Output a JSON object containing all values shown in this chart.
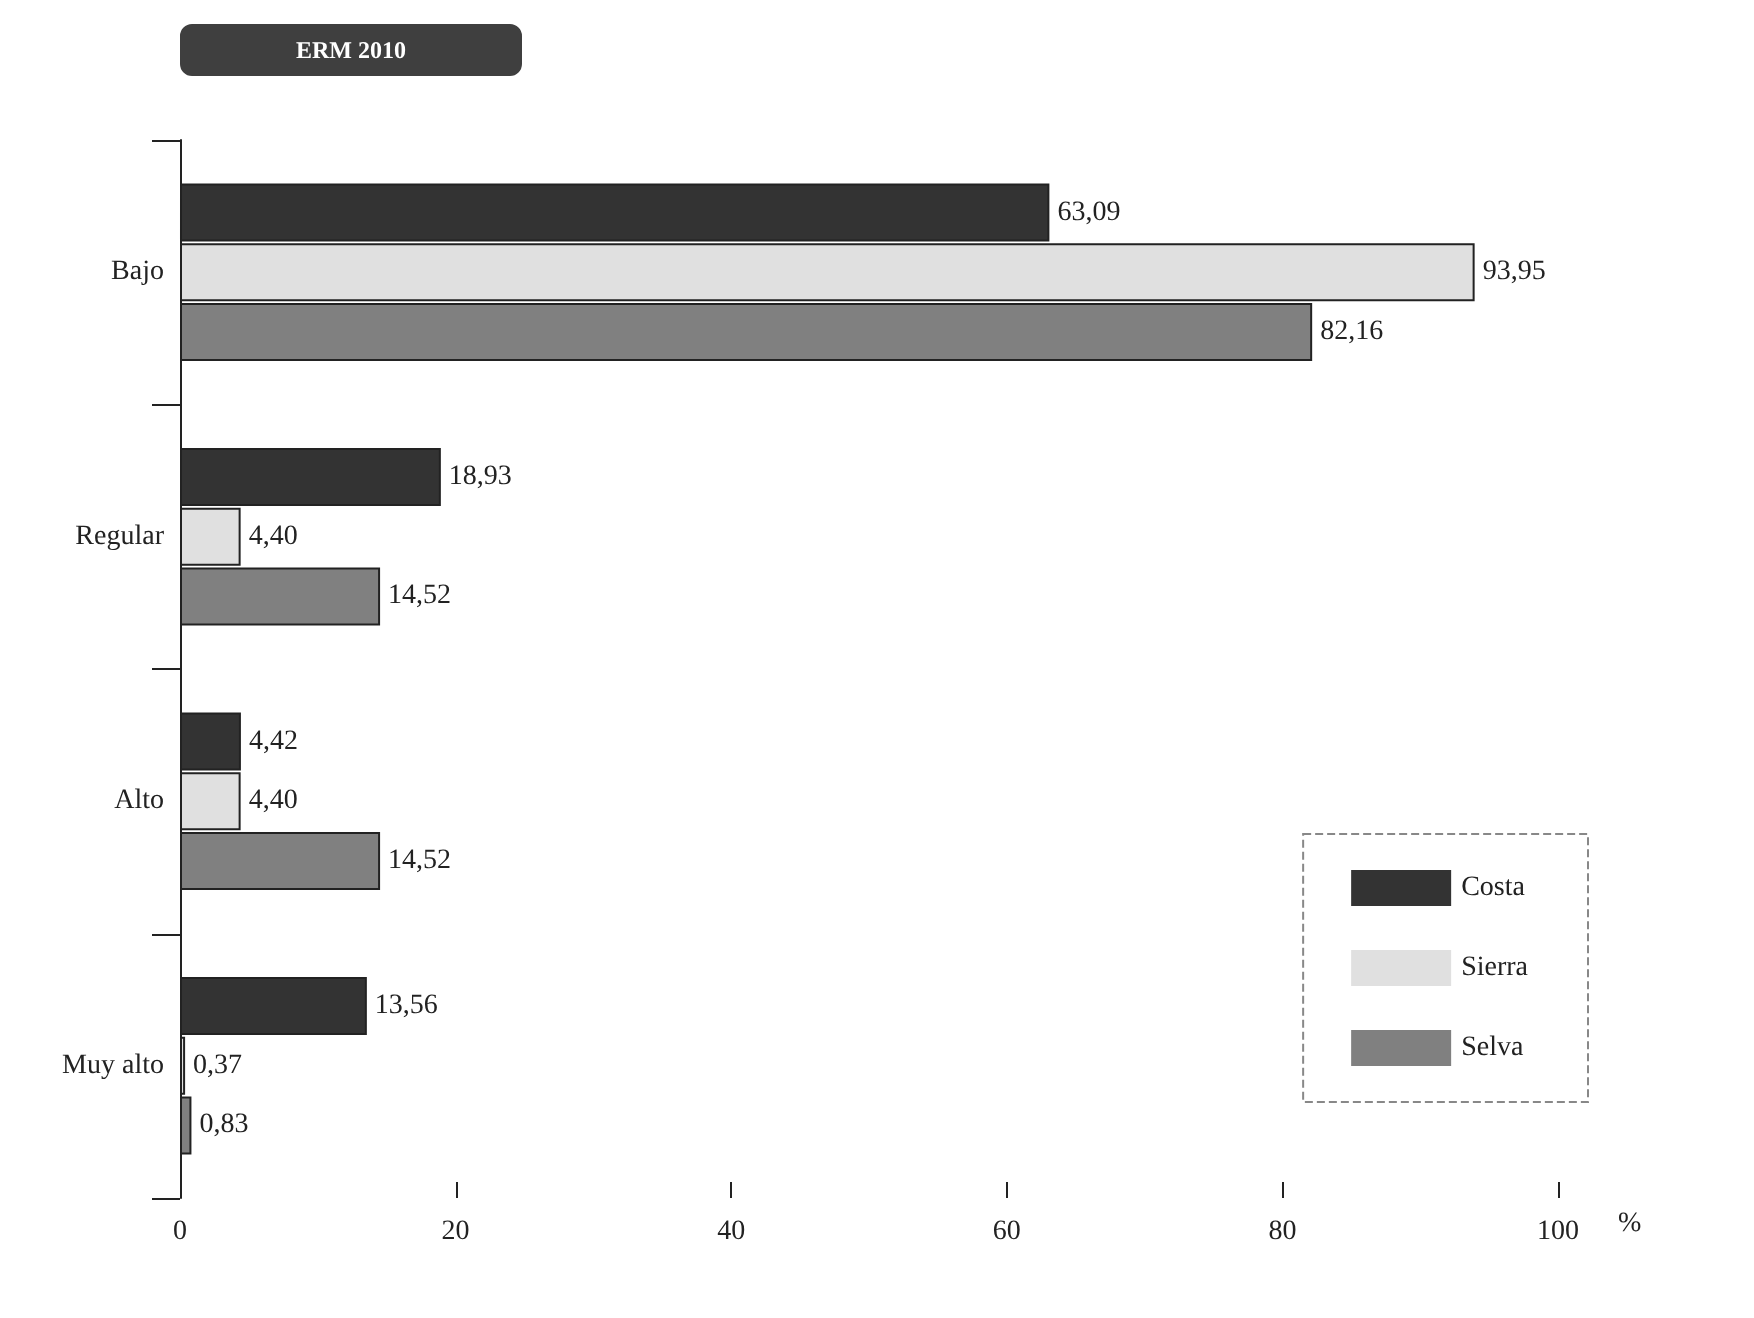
{
  "chart_data": {
    "type": "bar",
    "orientation": "horizontal",
    "title": "ERM 2010",
    "xlabel": "%",
    "categories": [
      "Bajo",
      "Regular",
      "Alto",
      "Muy alto"
    ],
    "series": [
      {
        "name": "Costa",
        "color": "#333333",
        "values": [
          63.09,
          18.93,
          4.42,
          13.56
        ],
        "value_labels": [
          "63,09",
          "18,93",
          "4,42",
          "13,56"
        ]
      },
      {
        "name": "Sierra",
        "color": "#e0e0e0",
        "values": [
          93.95,
          4.4,
          4.4,
          0.37
        ],
        "value_labels": [
          "93,95",
          "4,40",
          "4,40",
          "0,37"
        ]
      },
      {
        "name": "Selva",
        "color": "#808080",
        "values": [
          82.16,
          14.52,
          14.52,
          0.83
        ],
        "value_labels": [
          "82,16",
          "14,52",
          "14,52",
          "0,83"
        ]
      }
    ],
    "xlim": [
      0,
      100
    ],
    "xticks": [
      0,
      20,
      40,
      60,
      80,
      100
    ],
    "grid": false,
    "legend": "bottom right"
  }
}
